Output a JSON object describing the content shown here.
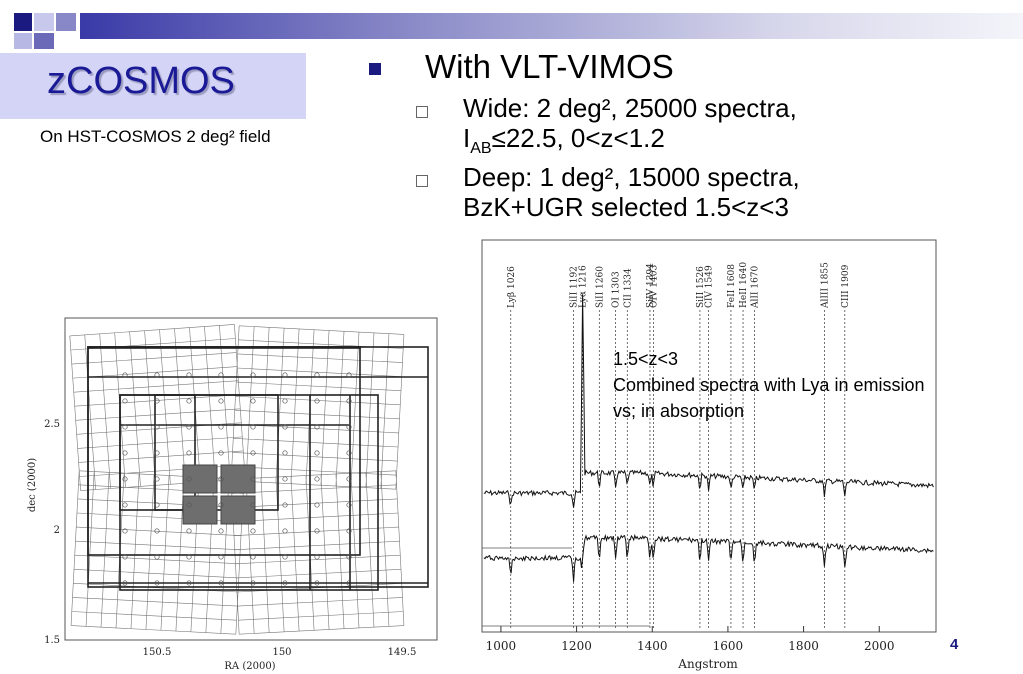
{
  "slide": {
    "title": "zCOSMOS",
    "subtitle": "On HST-COSMOS 2 deg² field",
    "bullet_main": "With VLT-VIMOS",
    "wide_line1": "Wide: 2 deg², 25000 spectra,",
    "wide_line2_prefix": "I",
    "wide_line2_sub": "AB",
    "wide_line2_rest": "≤22.5, 0<z<1.2",
    "deep_line1": "Deep: 1 deg², 15000 spectra,",
    "deep_line2": "BzK+UGR selected 1.5<z<3",
    "overlay_line1": "1.5<z<3",
    "overlay_line2": "Combined spectra with Lya  in emission",
    "overlay_line3": "vs; in absorption",
    "page_number": "4"
  },
  "colors": {
    "title_text": "#1a1a96",
    "title_box": "#d4d4f6",
    "bullet": "#1a1a80"
  },
  "field_map": {
    "x_label": "RA (2000)",
    "y_label": "dec (2000)",
    "x_ticks": [
      "150.5",
      "150",
      "149.5"
    ],
    "y_ticks": [
      "2.5",
      "2",
      "1.5"
    ]
  },
  "spectra": {
    "x_label": "Angstrom",
    "x_ticks": [
      "1000",
      "1200",
      "1400",
      "1600",
      "1800",
      "2000"
    ],
    "lines": [
      {
        "label": "Lyβ 1026",
        "wl": 1026
      },
      {
        "label": "SiII 1192",
        "wl": 1192
      },
      {
        "label": "Lyα 1216",
        "wl": 1216
      },
      {
        "label": "SiII 1260",
        "wl": 1260
      },
      {
        "label": "OI 1303",
        "wl": 1303
      },
      {
        "label": "CII 1334",
        "wl": 1334
      },
      {
        "label": "SiIV 1394",
        "wl": 1394
      },
      {
        "label": "OIV 1403",
        "wl": 1403
      },
      {
        "label": "SiII 1526",
        "wl": 1526
      },
      {
        "label": "CIV 1549",
        "wl": 1549
      },
      {
        "label": "FeII 1608",
        "wl": 1608
      },
      {
        "label": "HeII 1640",
        "wl": 1640
      },
      {
        "label": "AlII 1670",
        "wl": 1670
      },
      {
        "label": "AlIII 1855",
        "wl": 1855
      },
      {
        "label": "CIII 1909",
        "wl": 1909
      }
    ]
  }
}
